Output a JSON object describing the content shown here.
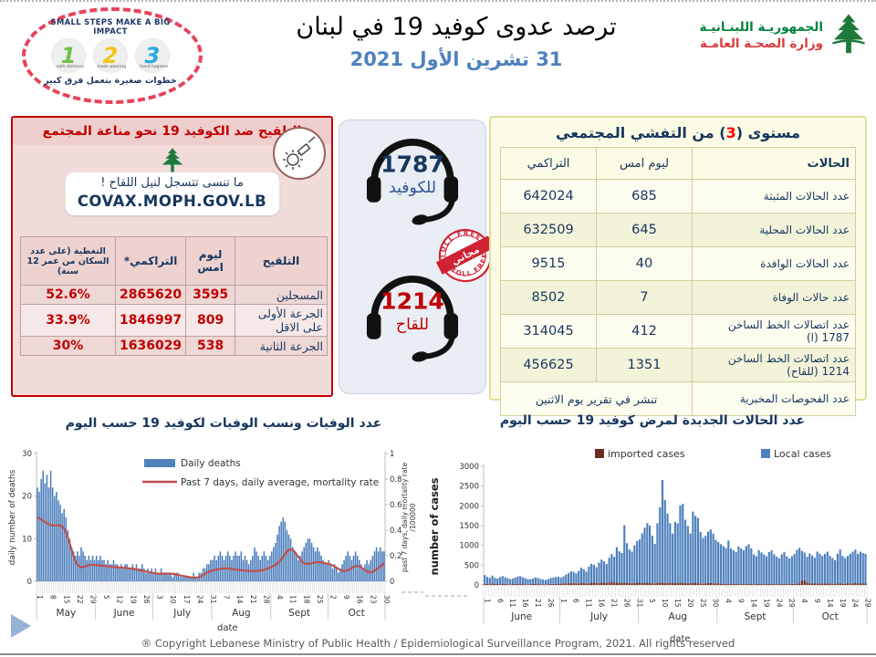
{
  "header": {
    "badge": {
      "title": "SMALL STEPS MAKE A BIG IMPACT",
      "steps": [
        {
          "num": "1",
          "color": "#72bf44",
          "label": "safe distance"
        },
        {
          "num": "2",
          "color": "#f5c518",
          "label": "mask wearing"
        },
        {
          "num": "3",
          "color": "#27aae1",
          "label": "hand hygiene"
        }
      ],
      "caption": "خطوات صغيرة بتعمل فرق كبير"
    },
    "title": "ترصد عدوى كوفيد 19 في لبنان",
    "date": "31 تشرين الأول 2021",
    "ministry": {
      "line1": "الجمهوريـة اللبنـانيـة",
      "line2": "وزارة الصحـة العامـة"
    }
  },
  "vaccination_panel": {
    "title": "التلقيح ضد الكوفيد 19  نحو مناعة المجتمع",
    "bubble_line1": "ما تنسى تتسجل لنيل اللقاح !",
    "bubble_line2": "COVAX.MOPH.GOV.LB",
    "columns": [
      "التلقيح",
      "ليوم امس",
      "التراكمي*",
      "التغطية (على عدد السكان من عمر 12 سنة)"
    ],
    "rows": [
      {
        "label": "المسجلين",
        "yesterday": "3595",
        "cumulative": "2865620",
        "coverage": "52.6%"
      },
      {
        "label": "الجرعة الأولى على الاقل",
        "yesterday": "809",
        "cumulative": "1846997",
        "coverage": "33.9%"
      },
      {
        "label": "الجرعة الثانية",
        "yesterday": "538",
        "cumulative": "1636029",
        "coverage": "30%"
      }
    ]
  },
  "hotlines": {
    "covid": {
      "number": "1787",
      "label": "للكوفيد",
      "number_color": "#17375e",
      "label_color": "#2f5496"
    },
    "vaccine": {
      "number": "1214",
      "label": "للقاح",
      "number_color": "#c00000",
      "label_color": "#c00000"
    },
    "stamp": {
      "arc_text": "TOLL FREE",
      "banner_text": "مجاني",
      "color": "#cf2233"
    }
  },
  "cases_panel": {
    "title_pre": "مستوى (",
    "title_level": "3",
    "title_post": ") من التفشي المجتمعي",
    "columns": [
      "الحالات",
      "ليوم امس",
      "التراكمي"
    ],
    "rows": [
      {
        "label": "عدد الحالات المثبتة",
        "yesterday": "685",
        "cumulative": "642024"
      },
      {
        "label": "عدد الحالات المحلية",
        "yesterday": "645",
        "cumulative": "632509"
      },
      {
        "label": "عدد الحالات الوافدة",
        "yesterday": "40",
        "cumulative": "9515"
      },
      {
        "label": "عدد حالات الوفاة",
        "yesterday": "7",
        "cumulative": "8502"
      },
      {
        "label": "عدد اتصالات الخط الساخن 1787  (ا)",
        "yesterday": "412",
        "cumulative": "314045"
      },
      {
        "label": "عدد اتصالات الخط الساخن 1214 (للقاح)",
        "yesterday": "1351",
        "cumulative": "456625"
      }
    ],
    "footer_row": {
      "label": "عدد الفحوصات المخبرية",
      "value": "تنشر في تقرير يوم الاثنين"
    }
  },
  "chart_titles": {
    "deaths": "عدد الوفيات ونسب الوفيات لكوفيد 19 حسب اليوم",
    "cases": "عدد الحالات الجديدة لمرض كوفيد 19 حسب اليوم"
  },
  "footer": {
    "copyright": "® Copyright Lebanese Ministry of Public Health / Epidemiological Surveillance Program, 2021. All rights reserved"
  },
  "chart_data": [
    {
      "type": "bar",
      "name": "daily-deaths-and-mortality",
      "legend": [
        "Daily deaths",
        "Past 7 days, daily average, mortality rate"
      ],
      "bar_color": "#4f81bd",
      "line_color": "#c0504d",
      "ylabel_left": "daily number of deaths",
      "ylim_left": [
        0,
        30
      ],
      "yticks_left": [
        0,
        10,
        20,
        30
      ],
      "ylabel_right_l1": "past 7 days, daily mortality rate",
      "ylabel_right_l2": "/100000",
      "ylim_right": [
        0,
        1
      ],
      "yticks_right": [
        0,
        0.2,
        0.4,
        0.6,
        0.8,
        1
      ],
      "xlabel": "date",
      "months": [
        {
          "name": "May",
          "days": 31
        },
        {
          "name": "June",
          "days": 30
        },
        {
          "name": "July",
          "days": 31
        },
        {
          "name": "Aug",
          "days": 31
        },
        {
          "name": "Sept",
          "days": 30
        },
        {
          "name": "Oct",
          "days": 30
        }
      ],
      "tick_every": 7,
      "tick_labels": [
        "1",
        "8",
        "15",
        "22",
        "29",
        "5",
        "12",
        "19",
        "26",
        "3",
        "10",
        "17",
        "24",
        "31",
        "7",
        "14",
        "21",
        "28",
        "4",
        "11",
        "18",
        "25",
        "2",
        "9",
        "16",
        "23",
        "30"
      ],
      "daily_deaths": [
        22,
        21,
        24,
        26,
        23,
        25,
        22,
        26,
        22,
        20,
        21,
        19,
        18,
        16,
        17,
        15,
        12,
        10,
        8,
        7,
        6,
        7,
        6,
        8,
        7,
        6,
        5,
        6,
        5,
        6,
        5,
        6,
        5,
        6,
        5,
        5,
        4,
        5,
        4,
        4,
        5,
        4,
        4,
        3,
        4,
        3,
        4,
        4,
        3,
        3,
        4,
        3,
        4,
        3,
        3,
        4,
        3,
        2,
        3,
        2,
        3,
        2,
        3,
        2,
        2,
        3,
        2,
        2,
        2,
        2,
        2,
        1,
        2,
        2,
        2,
        1,
        1,
        1,
        1,
        1,
        1,
        1,
        2,
        1,
        1,
        2,
        2,
        3,
        3,
        4,
        4,
        5,
        5,
        6,
        5,
        6,
        7,
        6,
        5,
        6,
        7,
        6,
        5,
        6,
        7,
        6,
        6,
        7,
        5,
        6,
        5,
        4,
        5,
        6,
        8,
        7,
        6,
        5,
        6,
        7,
        6,
        5,
        6,
        7,
        8,
        9,
        11,
        13,
        14,
        15,
        14,
        12,
        11,
        10,
        8,
        7,
        6,
        5,
        6,
        7,
        8,
        9,
        10,
        10,
        9,
        8,
        7,
        8,
        7,
        6,
        5,
        4,
        4,
        5,
        4,
        3,
        4,
        3,
        2,
        3,
        4,
        5,
        6,
        7,
        6,
        5,
        6,
        7,
        6,
        5,
        4,
        3,
        4,
        5,
        4,
        5,
        6,
        7,
        8,
        7,
        8,
        7,
        7
      ],
      "mortality_rate_weekly": [
        0.5,
        0.44,
        0.41,
        0.13,
        0.13,
        0.12,
        0.11,
        0.1,
        0.08,
        0.06,
        0.06,
        0.04,
        0.03,
        0.08,
        0.1,
        0.09,
        0.08,
        0.09,
        0.14,
        0.25,
        0.14,
        0.15,
        0.13,
        0.08,
        0.12,
        0.07,
        0.14
      ]
    },
    {
      "type": "bar",
      "name": "daily-new-cases",
      "legend": [
        "imported cases",
        "Local cases"
      ],
      "imported_color": "#6e2c23",
      "local_color": "#4f81bd",
      "ylabel": "number of cases",
      "ylim": [
        0,
        3000
      ],
      "yticks": [
        0,
        500,
        1000,
        1500,
        2000,
        2500,
        3000
      ],
      "xlabel": "date",
      "months": [
        {
          "name": "June",
          "days": 30
        },
        {
          "name": "July",
          "days": 31
        },
        {
          "name": "Aug",
          "days": 31
        },
        {
          "name": "Sept",
          "days": 30
        },
        {
          "name": "Oct",
          "days": 29
        }
      ],
      "tick_every": 5,
      "tick_labels": [
        "1",
        "6",
        "11",
        "16",
        "21",
        "26",
        "1",
        "6",
        "11",
        "16",
        "21",
        "26",
        "31",
        "5",
        "10",
        "15",
        "20",
        "25",
        "30",
        "4",
        "9",
        "14",
        "19",
        "24",
        "29",
        "4",
        "9",
        "14",
        "19",
        "24",
        "29"
      ],
      "imported": [
        30,
        25,
        20,
        35,
        28,
        22,
        18,
        25,
        30,
        20,
        15,
        22,
        28,
        32,
        25,
        20,
        18,
        15,
        22,
        26,
        30,
        24,
        20,
        16,
        14,
        20,
        25,
        28,
        30,
        26,
        30,
        35,
        40,
        38,
        45,
        50,
        42,
        38,
        55,
        48,
        40,
        45,
        52,
        58,
        50,
        45,
        60,
        55,
        48,
        65,
        80,
        60,
        55,
        50,
        58,
        62,
        55,
        48,
        45,
        52,
        58,
        50,
        55,
        48,
        60,
        52,
        45,
        40,
        58,
        62,
        55,
        48,
        52,
        58,
        50,
        45,
        55,
        60,
        52,
        48,
        42,
        50,
        55,
        48,
        45,
        40,
        38,
        42,
        48,
        50,
        45,
        40,
        35,
        30,
        28,
        32,
        25,
        22,
        28,
        30,
        25,
        20,
        25,
        30,
        28,
        22,
        18,
        25,
        28,
        22,
        20,
        25,
        30,
        25,
        22,
        18,
        20,
        25,
        28,
        22,
        20,
        24,
        30,
        35,
        40,
        110,
        120,
        60,
        45,
        40,
        35,
        42,
        38,
        32,
        36,
        40,
        34,
        30,
        26,
        38,
        45,
        32,
        28,
        34,
        38,
        42,
        46,
        38,
        42,
        36,
        34
      ],
      "local": [
        220,
        180,
        160,
        200,
        150,
        140,
        180,
        200,
        160,
        150,
        130,
        140,
        160,
        180,
        200,
        170,
        150,
        130,
        120,
        140,
        160,
        150,
        130,
        120,
        110,
        130,
        150,
        160,
        170,
        180,
        150,
        180,
        220,
        260,
        300,
        280,
        250,
        320,
        380,
        350,
        300,
        420,
        480,
        450,
        400,
        520,
        580,
        540,
        480,
        620,
        700,
        650,
        900,
        800,
        750,
        1450,
        1000,
        850,
        800,
        950,
        1050,
        1100,
        1250,
        1400,
        1500,
        1450,
        1200,
        1000,
        1500,
        1900,
        2600,
        2100,
        1750,
        1500,
        1250,
        1550,
        1500,
        1950,
        2000,
        1600,
        1450,
        1250,
        1800,
        1700,
        1650,
        1300,
        1150,
        1200,
        1300,
        1350,
        1250,
        1100,
        1050,
        1000,
        950,
        900,
        1100,
        900,
        850,
        800,
        950,
        900,
        850,
        950,
        1000,
        900,
        750,
        700,
        850,
        800,
        750,
        700,
        800,
        850,
        750,
        700,
        650,
        750,
        800,
        700,
        650,
        700,
        750,
        850,
        900,
        750,
        700,
        650,
        750,
        700,
        650,
        800,
        750,
        700,
        750,
        800,
        700,
        650,
        600,
        750,
        850,
        700,
        650,
        700,
        750,
        800,
        850,
        750,
        800,
        770,
        750
      ]
    }
  ]
}
